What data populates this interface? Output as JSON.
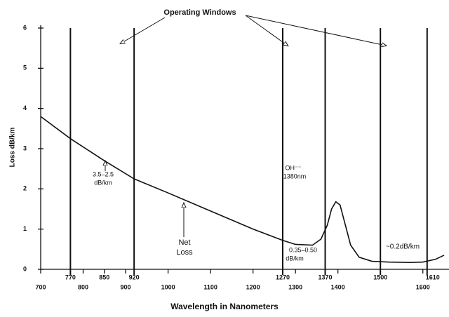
{
  "chart_data": {
    "type": "line",
    "x_label": "Wavelength in Nanometers",
    "y_label": "Loss dB/km",
    "xlim": [
      700,
      1650
    ],
    "ylim": [
      0,
      6
    ],
    "xticks": [
      700,
      770,
      800,
      850,
      900,
      920,
      1000,
      1100,
      1200,
      1270,
      1300,
      1370,
      1400,
      1500,
      1600,
      1610
    ],
    "yticks": [
      0,
      1,
      2,
      3,
      4,
      5,
      6
    ],
    "windows": [
      770,
      920,
      1270,
      1370,
      1500,
      1610
    ],
    "series": [
      {
        "color": "#111111",
        "x": [
          700,
          770,
          850,
          920,
          1000,
          1100,
          1200,
          1270,
          1300,
          1340,
          1360,
          1375,
          1385,
          1395,
          1405,
          1415,
          1430,
          1450,
          1480,
          1520,
          1570,
          1600,
          1630,
          1650
        ],
        "values": [
          3.8,
          3.25,
          2.7,
          2.25,
          1.9,
          1.45,
          1.0,
          0.72,
          0.62,
          0.6,
          0.75,
          1.1,
          1.5,
          1.68,
          1.6,
          1.2,
          0.6,
          0.3,
          0.2,
          0.18,
          0.17,
          0.18,
          0.25,
          0.35
        ]
      }
    ],
    "annotations": [
      "Operating Windows",
      "3.5–2.5",
      "dB/km",
      "Net",
      "Loss",
      "OH⁻⁻",
      "1380nm",
      "0.35–0.50",
      "dB/km",
      "~0.2dB/km"
    ]
  }
}
